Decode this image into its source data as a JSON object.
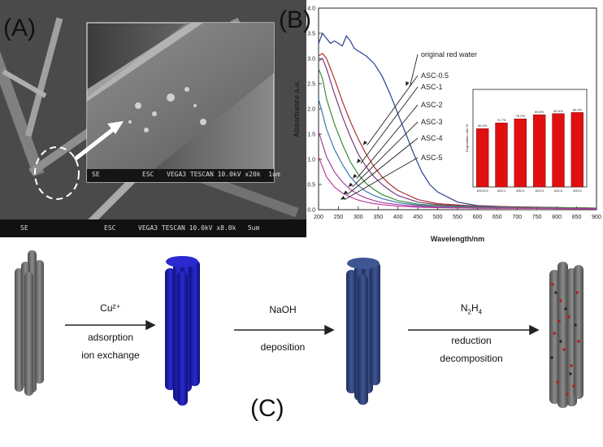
{
  "panels": {
    "a_label": "(A)",
    "b_label": "(B)",
    "c_label": "(C)"
  },
  "sem": {
    "main_bar_left": "SE",
    "main_bar_mid": "ESC",
    "main_bar_right": "VEGA3 TESCAN 10.0kV x8.0k   5um",
    "inset_bar_left": "SE",
    "inset_bar_mid": "ESC",
    "inset_bar_right": "VEGA3 TESCAN 10.0kV x20k  1um"
  },
  "chart_data": {
    "type": "line",
    "xlabel": "Wavelength/nm",
    "ylabel": "Absorbance a.u.",
    "xlim": [
      200,
      900
    ],
    "ylim": [
      0.0,
      4.0
    ],
    "xticks": [
      200,
      250,
      300,
      350,
      400,
      450,
      500,
      550,
      600,
      650,
      700,
      750,
      800,
      850,
      900
    ],
    "yticks": [
      "0.0",
      "0.5",
      "1.0",
      "1.5",
      "2.0",
      "2.5",
      "3.0",
      "3.5",
      "4.0"
    ],
    "series": [
      {
        "name": "original red water",
        "color": "#2b3f8f",
        "points": [
          [
            200,
            3.3
          ],
          [
            210,
            3.5
          ],
          [
            220,
            3.4
          ],
          [
            230,
            3.3
          ],
          [
            240,
            3.35
          ],
          [
            250,
            3.3
          ],
          [
            260,
            3.25
          ],
          [
            270,
            3.45
          ],
          [
            280,
            3.35
          ],
          [
            290,
            3.2
          ],
          [
            300,
            3.15
          ],
          [
            320,
            3.05
          ],
          [
            340,
            2.9
          ],
          [
            360,
            2.65
          ],
          [
            380,
            2.3
          ],
          [
            400,
            1.9
          ],
          [
            420,
            1.5
          ],
          [
            440,
            1.1
          ],
          [
            460,
            0.75
          ],
          [
            480,
            0.5
          ],
          [
            500,
            0.35
          ],
          [
            550,
            0.15
          ],
          [
            600,
            0.08
          ],
          [
            700,
            0.05
          ],
          [
            900,
            0.03
          ]
        ]
      },
      {
        "name": "ASC-0.5",
        "color": "#b03030",
        "points": [
          [
            200,
            3.05
          ],
          [
            210,
            3.1
          ],
          [
            220,
            3.0
          ],
          [
            240,
            2.6
          ],
          [
            260,
            2.15
          ],
          [
            280,
            1.75
          ],
          [
            300,
            1.4
          ],
          [
            320,
            1.1
          ],
          [
            340,
            0.85
          ],
          [
            360,
            0.65
          ],
          [
            380,
            0.5
          ],
          [
            400,
            0.38
          ],
          [
            450,
            0.2
          ],
          [
            500,
            0.12
          ],
          [
            600,
            0.07
          ],
          [
            900,
            0.03
          ]
        ]
      },
      {
        "name": "ASC-1",
        "color": "#7a3a7a",
        "points": [
          [
            200,
            2.95
          ],
          [
            210,
            3.0
          ],
          [
            220,
            2.8
          ],
          [
            240,
            2.3
          ],
          [
            260,
            1.85
          ],
          [
            280,
            1.45
          ],
          [
            300,
            1.1
          ],
          [
            320,
            0.85
          ],
          [
            340,
            0.65
          ],
          [
            360,
            0.5
          ],
          [
            380,
            0.38
          ],
          [
            400,
            0.28
          ],
          [
            450,
            0.15
          ],
          [
            500,
            0.1
          ],
          [
            600,
            0.06
          ],
          [
            900,
            0.03
          ]
        ]
      },
      {
        "name": "ASC-2",
        "color": "#3a8a3a",
        "points": [
          [
            200,
            2.8
          ],
          [
            210,
            2.6
          ],
          [
            220,
            2.2
          ],
          [
            240,
            1.7
          ],
          [
            260,
            1.3
          ],
          [
            280,
            0.95
          ],
          [
            300,
            0.7
          ],
          [
            320,
            0.52
          ],
          [
            340,
            0.4
          ],
          [
            360,
            0.3
          ],
          [
            400,
            0.18
          ],
          [
            450,
            0.11
          ],
          [
            500,
            0.08
          ],
          [
            600,
            0.05
          ],
          [
            900,
            0.03
          ]
        ]
      },
      {
        "name": "ASC-3",
        "color": "#3a7ab0",
        "points": [
          [
            200,
            2.2
          ],
          [
            210,
            1.9
          ],
          [
            220,
            1.6
          ],
          [
            240,
            1.2
          ],
          [
            260,
            0.9
          ],
          [
            280,
            0.65
          ],
          [
            300,
            0.48
          ],
          [
            320,
            0.36
          ],
          [
            340,
            0.28
          ],
          [
            360,
            0.22
          ],
          [
            400,
            0.14
          ],
          [
            450,
            0.09
          ],
          [
            500,
            0.06
          ],
          [
            600,
            0.04
          ],
          [
            900,
            0.02
          ]
        ]
      },
      {
        "name": "ASC-4",
        "color": "#a040a0",
        "points": [
          [
            200,
            1.55
          ],
          [
            210,
            1.3
          ],
          [
            220,
            1.05
          ],
          [
            240,
            0.75
          ],
          [
            260,
            0.55
          ],
          [
            280,
            0.4
          ],
          [
            300,
            0.3
          ],
          [
            320,
            0.23
          ],
          [
            340,
            0.18
          ],
          [
            360,
            0.14
          ],
          [
            400,
            0.1
          ],
          [
            450,
            0.07
          ],
          [
            500,
            0.05
          ],
          [
            600,
            0.03
          ],
          [
            900,
            0.02
          ]
        ]
      },
      {
        "name": "ASC-5",
        "color": "#c03aa0",
        "points": [
          [
            200,
            1.05
          ],
          [
            210,
            0.85
          ],
          [
            220,
            0.65
          ],
          [
            240,
            0.45
          ],
          [
            260,
            0.33
          ],
          [
            280,
            0.25
          ],
          [
            300,
            0.19
          ],
          [
            320,
            0.15
          ],
          [
            340,
            0.12
          ],
          [
            360,
            0.1
          ],
          [
            400,
            0.07
          ],
          [
            450,
            0.05
          ],
          [
            500,
            0.04
          ],
          [
            600,
            0.03
          ],
          [
            900,
            0.02
          ]
        ]
      }
    ],
    "inset": {
      "type": "bar",
      "ylabel": "Degradation rate %",
      "categories": [
        "ASC0.5",
        "ASC1",
        "ASC2",
        "ASC3",
        "ASC4",
        "ASC5"
      ],
      "values": [
        65.3,
        71.7,
        76.2,
        80.8,
        82.0,
        83.3
      ],
      "value_labels": [
        "65.3%",
        "71.7%",
        "76.2%",
        "80.8%",
        "82.0%",
        "83.3%"
      ],
      "ylim": [
        0,
        100
      ],
      "bar_color": "#e01010"
    }
  },
  "schematic": {
    "step1_top": "Cu²⁺",
    "step1_mid": "adsorption",
    "step1_bot": "ion exchange",
    "step2_top": "NaOH",
    "step2_bot": "deposition",
    "step3_top_base": "N",
    "step3_top_sub1": "2",
    "step3_top_mid": "H",
    "step3_top_sub2": "4",
    "step3_mid": "reduction",
    "step3_bot": "decomposition",
    "colors": {
      "gray": "#6e6e6e",
      "blue": "#1c1ca8",
      "navy": "#2b3f78",
      "dots": "#b02020"
    }
  }
}
